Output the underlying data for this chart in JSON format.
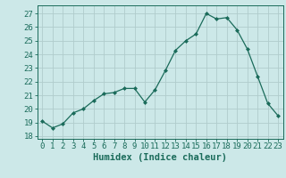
{
  "x": [
    0,
    1,
    2,
    3,
    4,
    5,
    6,
    7,
    8,
    9,
    10,
    11,
    12,
    13,
    14,
    15,
    16,
    17,
    18,
    19,
    20,
    21,
    22,
    23
  ],
  "y": [
    19.1,
    18.6,
    18.9,
    19.7,
    20.0,
    20.6,
    21.1,
    21.2,
    21.5,
    21.5,
    20.5,
    21.4,
    22.8,
    24.3,
    25.0,
    25.5,
    27.0,
    26.6,
    26.7,
    25.8,
    24.4,
    22.4,
    20.4,
    19.5
  ],
  "line_color": "#1a6b5a",
  "marker": "D",
  "marker_size": 2.0,
  "bg_color": "#cce8e8",
  "grid_color": "#b0cccc",
  "ylabel_ticks": [
    18,
    19,
    20,
    21,
    22,
    23,
    24,
    25,
    26,
    27
  ],
  "ylim": [
    17.8,
    27.6
  ],
  "xlim": [
    -0.5,
    23.5
  ],
  "xlabel": "Humidex (Indice chaleur)",
  "tick_fontsize": 6.5,
  "xlabel_fontsize": 7.5,
  "label_color": "#1a6b5a",
  "spine_color": "#1a6b5a"
}
